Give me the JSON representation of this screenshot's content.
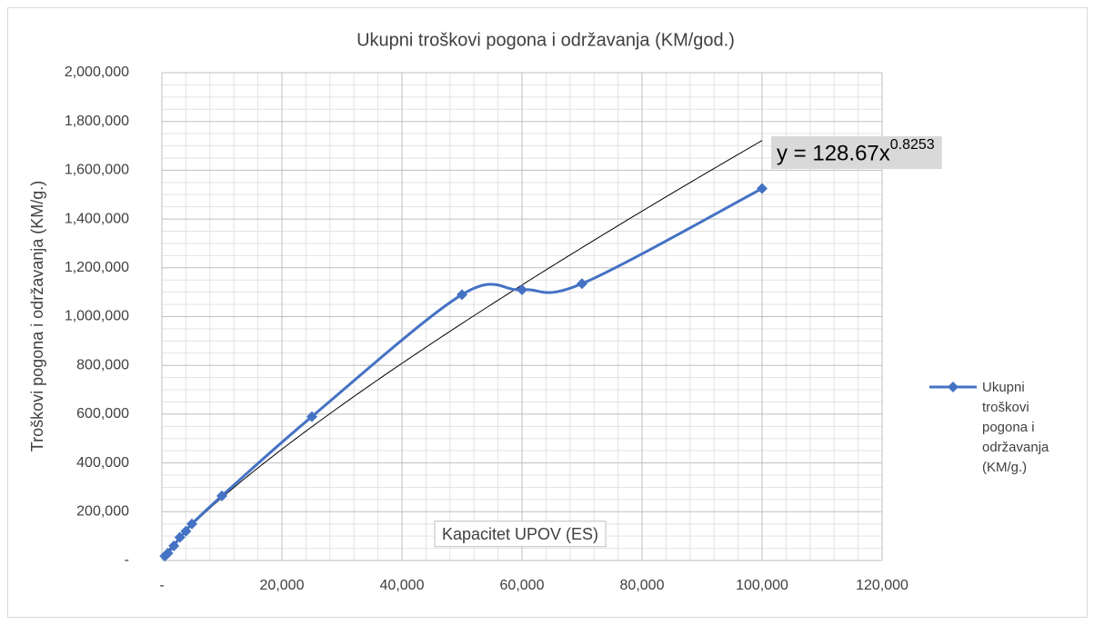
{
  "chart_data": {
    "type": "scatter",
    "title": "Ukupni troškovi pogona i održavanja (KM/god.)",
    "x_label": "Kapacitet UPOV (ES)",
    "y_label": "Troškovi pogona i održavanja (KM/g.)",
    "series": [
      {
        "name": "Ukupni troškovi pogona i održavanja (KM/g.)",
        "color": "#4472c4",
        "smooth": true,
        "x": [
          500,
          1000,
          2000,
          3000,
          4000,
          5000,
          10000,
          25000,
          50000,
          60000,
          70000,
          100000
        ],
        "values": [
          18000,
          30000,
          60000,
          95000,
          120000,
          150000,
          265000,
          590000,
          1090000,
          1110000,
          1135000,
          1525000
        ]
      }
    ],
    "trendline": {
      "type": "power",
      "color": "#000000",
      "coefficient": 128.67,
      "exponent": 0.8253,
      "label": "y = 128.67x",
      "label_exponent": "0.8253"
    },
    "xlim": [
      0,
      120000
    ],
    "xticks": [
      {
        "value": 0,
        "label": "-"
      },
      {
        "value": 20000,
        "label": "20,000"
      },
      {
        "value": 40000,
        "label": "40,000"
      },
      {
        "value": 60000,
        "label": "60,000"
      },
      {
        "value": 80000,
        "label": "80,000"
      },
      {
        "value": 100000,
        "label": "100,000"
      },
      {
        "value": 120000,
        "label": "120,000"
      }
    ],
    "ylim": [
      0,
      2000000
    ],
    "yticks": [
      {
        "value": 0,
        "label": "-"
      },
      {
        "value": 200000,
        "label": "200,000"
      },
      {
        "value": 400000,
        "label": "400,000"
      },
      {
        "value": 600000,
        "label": "600,000"
      },
      {
        "value": 800000,
        "label": "800,000"
      },
      {
        "value": 1000000,
        "label": "1,000,000"
      },
      {
        "value": 1200000,
        "label": "1,200,000"
      },
      {
        "value": 1400000,
        "label": "1,400,000"
      },
      {
        "value": 1600000,
        "label": "1,600,000"
      },
      {
        "value": 1800000,
        "label": "1,800,000"
      },
      {
        "value": 2000000,
        "label": "2,000,000"
      }
    ],
    "grid": true,
    "minor_grid": true,
    "legend": "right"
  }
}
